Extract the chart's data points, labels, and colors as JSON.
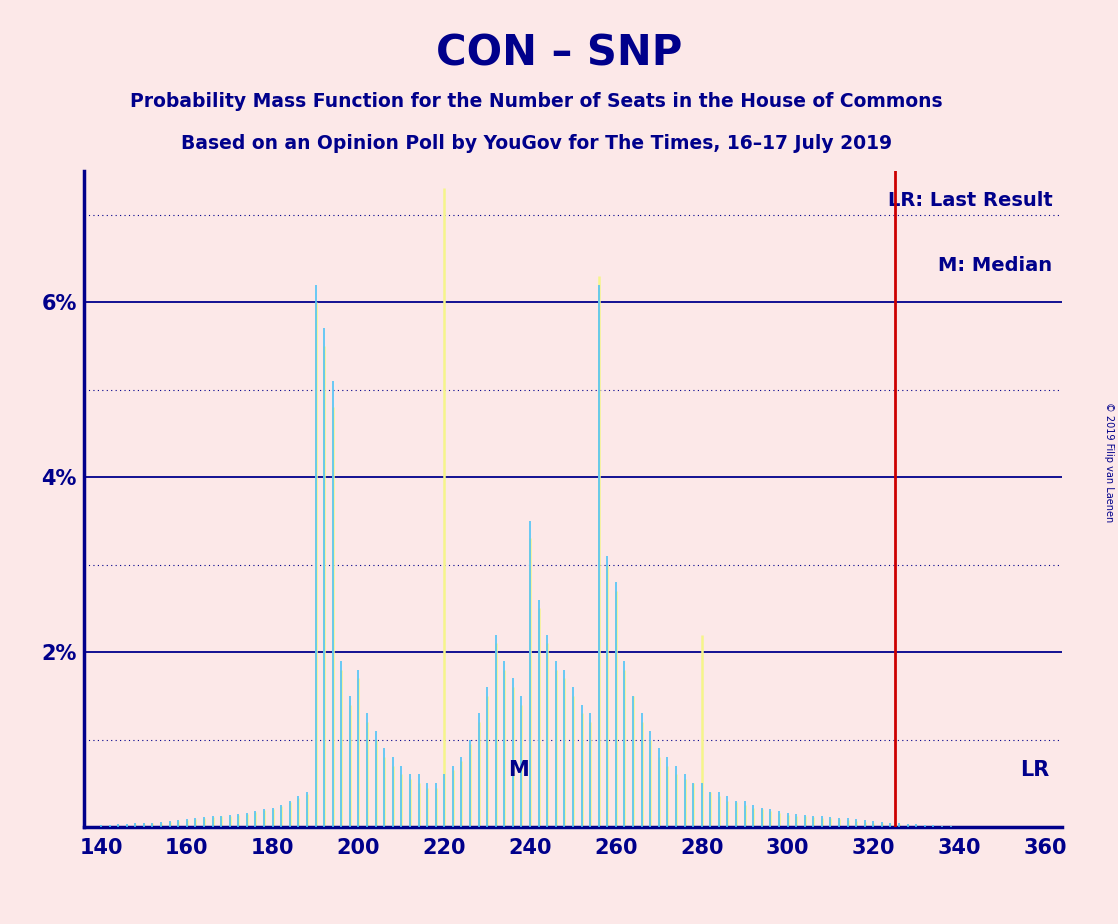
{
  "title": "CON – SNP",
  "subtitle1": "Probability Mass Function for the Number of Seats in the House of Commons",
  "subtitle2": "Based on an Opinion Poll by YouGov for The Times, 16–17 July 2019",
  "copyright": "© 2019 Filip van Laenen",
  "background_color": "#fce8e8",
  "title_color": "#00008B",
  "x_min": 136,
  "x_max": 364,
  "y_min": 0,
  "y_max": 0.075,
  "yticks": [
    0.0,
    0.02,
    0.04,
    0.06
  ],
  "ytick_labels": [
    "",
    "2%",
    "4%",
    "6%"
  ],
  "xticks": [
    140,
    160,
    180,
    200,
    220,
    240,
    260,
    280,
    300,
    320,
    340,
    360
  ],
  "last_result": 325,
  "median": 232,
  "cyan_color": "#4FC3F7",
  "yellow_color": "#F5F58A",
  "lr_color": "#CC0000",
  "grid_solid_color": "#00008B",
  "grid_dot_color": "#00008B",
  "pmf_cyan": [
    [
      140,
      0.0002
    ],
    [
      142,
      0.0002
    ],
    [
      144,
      0.0003
    ],
    [
      146,
      0.0003
    ],
    [
      148,
      0.0004
    ],
    [
      150,
      0.0004
    ],
    [
      152,
      0.0005
    ],
    [
      154,
      0.0006
    ],
    [
      156,
      0.0007
    ],
    [
      158,
      0.0008
    ],
    [
      160,
      0.0009
    ],
    [
      162,
      0.001
    ],
    [
      164,
      0.0011
    ],
    [
      166,
      0.0012
    ],
    [
      168,
      0.0013
    ],
    [
      170,
      0.0014
    ],
    [
      172,
      0.0015
    ],
    [
      174,
      0.0016
    ],
    [
      176,
      0.0018
    ],
    [
      178,
      0.002
    ],
    [
      180,
      0.0022
    ],
    [
      182,
      0.0025
    ],
    [
      184,
      0.003
    ],
    [
      186,
      0.0035
    ],
    [
      188,
      0.004
    ],
    [
      190,
      0.062
    ],
    [
      192,
      0.057
    ],
    [
      194,
      0.051
    ],
    [
      196,
      0.019
    ],
    [
      198,
      0.015
    ],
    [
      200,
      0.018
    ],
    [
      202,
      0.013
    ],
    [
      204,
      0.011
    ],
    [
      206,
      0.009
    ],
    [
      208,
      0.008
    ],
    [
      210,
      0.007
    ],
    [
      212,
      0.006
    ],
    [
      214,
      0.006
    ],
    [
      216,
      0.005
    ],
    [
      218,
      0.005
    ],
    [
      220,
      0.006
    ],
    [
      222,
      0.007
    ],
    [
      224,
      0.008
    ],
    [
      226,
      0.01
    ],
    [
      228,
      0.013
    ],
    [
      230,
      0.016
    ],
    [
      232,
      0.022
    ],
    [
      234,
      0.019
    ],
    [
      236,
      0.017
    ],
    [
      238,
      0.015
    ],
    [
      240,
      0.035
    ],
    [
      242,
      0.026
    ],
    [
      244,
      0.022
    ],
    [
      246,
      0.019
    ],
    [
      248,
      0.018
    ],
    [
      250,
      0.016
    ],
    [
      252,
      0.014
    ],
    [
      254,
      0.013
    ],
    [
      256,
      0.062
    ],
    [
      258,
      0.031
    ],
    [
      260,
      0.028
    ],
    [
      262,
      0.019
    ],
    [
      264,
      0.015
    ],
    [
      266,
      0.013
    ],
    [
      268,
      0.011
    ],
    [
      270,
      0.009
    ],
    [
      272,
      0.008
    ],
    [
      274,
      0.007
    ],
    [
      276,
      0.006
    ],
    [
      278,
      0.005
    ],
    [
      280,
      0.005
    ],
    [
      282,
      0.004
    ],
    [
      284,
      0.004
    ],
    [
      286,
      0.0035
    ],
    [
      288,
      0.003
    ],
    [
      290,
      0.003
    ],
    [
      292,
      0.0025
    ],
    [
      294,
      0.0022
    ],
    [
      296,
      0.002
    ],
    [
      298,
      0.0018
    ],
    [
      300,
      0.0016
    ],
    [
      302,
      0.0015
    ],
    [
      304,
      0.0014
    ],
    [
      306,
      0.0013
    ],
    [
      308,
      0.0012
    ],
    [
      310,
      0.0011
    ],
    [
      312,
      0.001
    ],
    [
      314,
      0.001
    ],
    [
      316,
      0.0009
    ],
    [
      318,
      0.0008
    ],
    [
      320,
      0.0007
    ],
    [
      322,
      0.0006
    ],
    [
      324,
      0.0005
    ],
    [
      326,
      0.0004
    ],
    [
      328,
      0.0003
    ],
    [
      330,
      0.0003
    ],
    [
      332,
      0.0002
    ],
    [
      334,
      0.0002
    ],
    [
      336,
      0.0001
    ],
    [
      338,
      0.0001
    ]
  ],
  "pmf_yellow": [
    [
      140,
      0.0001
    ],
    [
      142,
      0.0001
    ],
    [
      144,
      0.0002
    ],
    [
      146,
      0.0002
    ],
    [
      148,
      0.0003
    ],
    [
      150,
      0.0003
    ],
    [
      152,
      0.0004
    ],
    [
      154,
      0.0005
    ],
    [
      156,
      0.0006
    ],
    [
      158,
      0.0007
    ],
    [
      160,
      0.0008
    ],
    [
      162,
      0.0009
    ],
    [
      164,
      0.001
    ],
    [
      166,
      0.0011
    ],
    [
      168,
      0.0012
    ],
    [
      170,
      0.0013
    ],
    [
      172,
      0.0014
    ],
    [
      174,
      0.0015
    ],
    [
      176,
      0.0017
    ],
    [
      178,
      0.0019
    ],
    [
      180,
      0.0021
    ],
    [
      182,
      0.0024
    ],
    [
      184,
      0.0029
    ],
    [
      186,
      0.0033
    ],
    [
      188,
      0.0038
    ],
    [
      190,
      0.06
    ],
    [
      192,
      0.055
    ],
    [
      194,
      0.048
    ],
    [
      196,
      0.018
    ],
    [
      198,
      0.014
    ],
    [
      200,
      0.017
    ],
    [
      202,
      0.012
    ],
    [
      204,
      0.01
    ],
    [
      206,
      0.008
    ],
    [
      208,
      0.007
    ],
    [
      210,
      0.006
    ],
    [
      212,
      0.0055
    ],
    [
      214,
      0.005
    ],
    [
      216,
      0.0045
    ],
    [
      218,
      0.0045
    ],
    [
      220,
      0.073
    ],
    [
      222,
      0.0065
    ],
    [
      224,
      0.0075
    ],
    [
      226,
      0.0095
    ],
    [
      228,
      0.012
    ],
    [
      230,
      0.015
    ],
    [
      232,
      0.021
    ],
    [
      234,
      0.018
    ],
    [
      236,
      0.016
    ],
    [
      238,
      0.014
    ],
    [
      240,
      0.033
    ],
    [
      242,
      0.025
    ],
    [
      244,
      0.021
    ],
    [
      246,
      0.018
    ],
    [
      248,
      0.017
    ],
    [
      250,
      0.015
    ],
    [
      252,
      0.013
    ],
    [
      254,
      0.012
    ],
    [
      256,
      0.063
    ],
    [
      258,
      0.03
    ],
    [
      260,
      0.027
    ],
    [
      262,
      0.018
    ],
    [
      264,
      0.015
    ],
    [
      266,
      0.012
    ],
    [
      268,
      0.01
    ],
    [
      270,
      0.008
    ],
    [
      272,
      0.007
    ],
    [
      274,
      0.006
    ],
    [
      276,
      0.0055
    ],
    [
      278,
      0.005
    ],
    [
      280,
      0.022
    ],
    [
      282,
      0.004
    ],
    [
      284,
      0.0035
    ],
    [
      286,
      0.003
    ],
    [
      288,
      0.0028
    ],
    [
      290,
      0.0025
    ],
    [
      292,
      0.0022
    ],
    [
      294,
      0.002
    ],
    [
      296,
      0.0018
    ],
    [
      298,
      0.0016
    ],
    [
      300,
      0.0014
    ],
    [
      302,
      0.0013
    ],
    [
      304,
      0.0012
    ],
    [
      306,
      0.0011
    ],
    [
      308,
      0.001
    ],
    [
      310,
      0.001
    ],
    [
      312,
      0.0009
    ],
    [
      314,
      0.0008
    ],
    [
      316,
      0.0007
    ],
    [
      318,
      0.0006
    ],
    [
      320,
      0.0005
    ],
    [
      322,
      0.0004
    ],
    [
      324,
      0.0003
    ],
    [
      326,
      0.0003
    ],
    [
      328,
      0.0002
    ],
    [
      330,
      0.0002
    ]
  ]
}
